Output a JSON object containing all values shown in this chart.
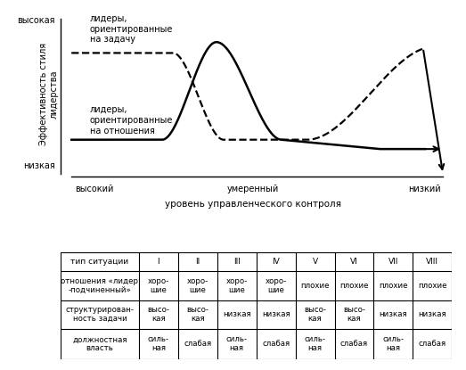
{
  "ylabel": "Эффективность стиля\nлидерства",
  "xlabel": "уровень управленческого контроля",
  "y_high_label": "высокая",
  "y_low_label": "низкая",
  "x_high_label": "высокий",
  "x_moderate_label": "умеренный",
  "x_low_label": "низкий",
  "task_label": "лидеры,\nориентированные\nна задачу",
  "relation_label": "лидеры,\nориентированные\nна отношения",
  "table_row0": [
    "тип ситуации",
    "I",
    "II",
    "III",
    "IV",
    "V",
    "VI",
    "VII",
    "VIII"
  ],
  "table_row1": [
    "отношения «лидер\n-подчиненный»",
    "хоро-\nшие",
    "хоро-\nшие",
    "хоро-\nшие",
    "хоро-\nшие",
    "плохие",
    "плохие",
    "плохие",
    "плохие"
  ],
  "table_row2": [
    "структурирован-\nность задачи",
    "высо-\nкая",
    "высо-\nкая",
    "низкая",
    "низкая",
    "высо-\nкая",
    "высо-\nкая",
    "низкая",
    "низкая"
  ],
  "table_row3": [
    "должностная\nвласть",
    "силь-\nная",
    "слабая",
    "силь-\nная",
    "слабая",
    "силь-\nная",
    "слабая",
    "силь-\nная",
    "слабая"
  ],
  "bg_color": "#ffffff"
}
